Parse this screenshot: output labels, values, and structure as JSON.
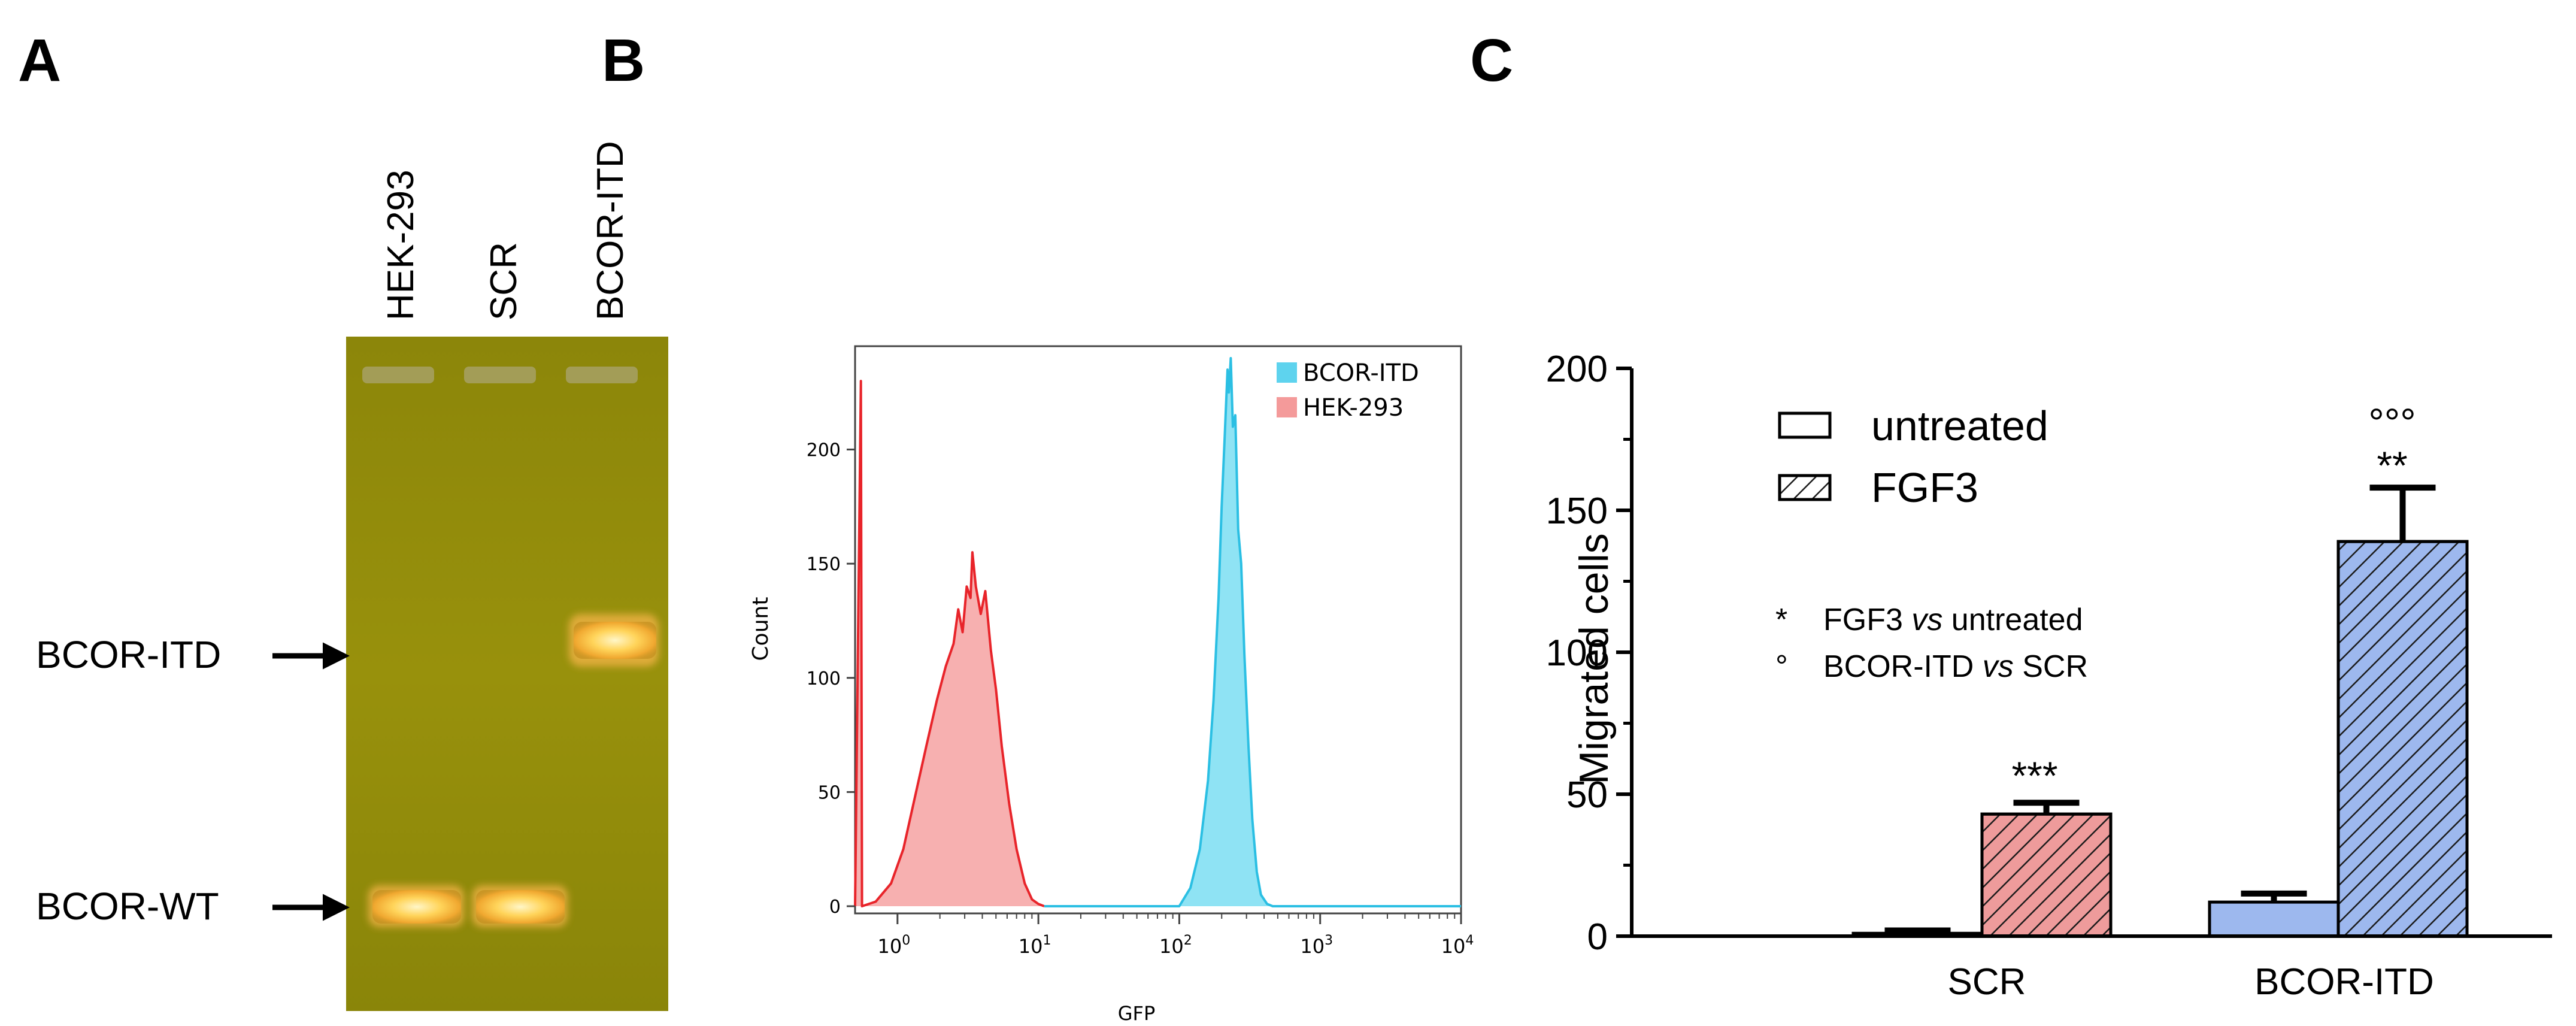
{
  "panels": {
    "a": {
      "letter": "A"
    },
    "b": {
      "letter": "B"
    },
    "c": {
      "letter": "C"
    }
  },
  "gel": {
    "lanes": [
      "HEK-293",
      "SCR",
      "BCOR-ITD"
    ],
    "band_labels": {
      "itd": "BCOR-ITD",
      "wt": "BCOR-WT"
    },
    "colors": {
      "background": "#8f8a08",
      "band": "#ffe07a"
    }
  },
  "flow_chart": {
    "type": "area",
    "title": "",
    "xlabel": "GFP",
    "ylabel": "Count",
    "x_scale": "log",
    "xlim": [
      0.5,
      10000
    ],
    "ylim": [
      0,
      240
    ],
    "y_ticks": [
      0,
      50,
      100,
      150,
      200
    ],
    "x_ticks": [
      {
        "base": "10",
        "exp": "0",
        "value": 1
      },
      {
        "base": "10",
        "exp": "1",
        "value": 10
      },
      {
        "base": "10",
        "exp": "2",
        "value": 100
      },
      {
        "base": "10",
        "exp": "3",
        "value": 1000
      },
      {
        "base": "10",
        "exp": "4",
        "value": 10000
      }
    ],
    "legend": {
      "position": "top-right",
      "entries": [
        {
          "label": "BCOR-ITD",
          "color": "#5ed3ee"
        },
        {
          "label": "HEK-293",
          "color": "#f49a9a"
        }
      ]
    },
    "series": [
      {
        "name": "HEK-293",
        "fill": "#f7b0b0",
        "stroke": "#e8242a",
        "points": [
          [
            0.5,
            0
          ],
          [
            0.55,
            230
          ],
          [
            0.56,
            0
          ],
          [
            0.7,
            2
          ],
          [
            0.9,
            10
          ],
          [
            1.1,
            25
          ],
          [
            1.3,
            45
          ],
          [
            1.6,
            70
          ],
          [
            1.9,
            90
          ],
          [
            2.2,
            105
          ],
          [
            2.5,
            115
          ],
          [
            2.7,
            130
          ],
          [
            2.9,
            120
          ],
          [
            3.1,
            140
          ],
          [
            3.3,
            135
          ],
          [
            3.4,
            155
          ],
          [
            3.6,
            140
          ],
          [
            3.9,
            128
          ],
          [
            4.2,
            138
          ],
          [
            4.6,
            112
          ],
          [
            5.0,
            95
          ],
          [
            5.5,
            70
          ],
          [
            6.2,
            45
          ],
          [
            7.0,
            25
          ],
          [
            8.0,
            10
          ],
          [
            9.0,
            3
          ],
          [
            10.0,
            1
          ],
          [
            11.0,
            0
          ]
        ]
      },
      {
        "name": "BCOR-ITD",
        "fill": "#8fe3f4",
        "stroke": "#2bbfe3",
        "points": [
          [
            11.0,
            0
          ],
          [
            80,
            0
          ],
          [
            100,
            0
          ],
          [
            120,
            8
          ],
          [
            140,
            25
          ],
          [
            160,
            55
          ],
          [
            175,
            90
          ],
          [
            190,
            135
          ],
          [
            200,
            175
          ],
          [
            210,
            205
          ],
          [
            220,
            235
          ],
          [
            225,
            225
          ],
          [
            232,
            240
          ],
          [
            240,
            210
          ],
          [
            250,
            215
          ],
          [
            262,
            165
          ],
          [
            275,
            150
          ],
          [
            290,
            110
          ],
          [
            310,
            70
          ],
          [
            330,
            38
          ],
          [
            355,
            15
          ],
          [
            380,
            5
          ],
          [
            420,
            1
          ],
          [
            460,
            0
          ],
          [
            10000,
            0
          ]
        ]
      }
    ]
  },
  "chart_data": {
    "type": "bar",
    "categories": [
      "SCR",
      "BCOR-ITD"
    ],
    "series": [
      {
        "name": "untreated",
        "values": [
          1,
          12
        ],
        "errors": [
          1,
          3
        ]
      },
      {
        "name": "FGF3",
        "values": [
          43,
          139
        ],
        "errors": [
          4,
          19
        ]
      }
    ],
    "ylabel": "Migrated cells",
    "xlabel": "",
    "ylim": [
      0,
      200
    ],
    "y_ticks": [
      0,
      50,
      100,
      150,
      200
    ],
    "bar_colors": {
      "SCR": "#ee9b9b",
      "BCOR-ITD": "#9db8ee"
    },
    "hatch_series": "FGF3",
    "annotations": {
      "SCR_FGF3": [
        "***"
      ],
      "BCOR-ITD_FGF3": [
        "°°°",
        "**"
      ]
    },
    "legend": {
      "position": "top-left",
      "entries": [
        {
          "label": "untreated",
          "style": "open"
        },
        {
          "label": "FGF3",
          "style": "hatched"
        }
      ]
    },
    "notes": [
      {
        "symbol": "*",
        "parts": [
          {
            "t": "FGF3 ",
            "i": false
          },
          {
            "t": "vs",
            "i": true
          },
          {
            "t": " untreated",
            "i": false
          }
        ]
      },
      {
        "symbol": "°",
        "parts": [
          {
            "t": "BCOR-ITD ",
            "i": false
          },
          {
            "t": "vs",
            "i": true
          },
          {
            "t": " SCR",
            "i": false
          }
        ]
      }
    ]
  }
}
